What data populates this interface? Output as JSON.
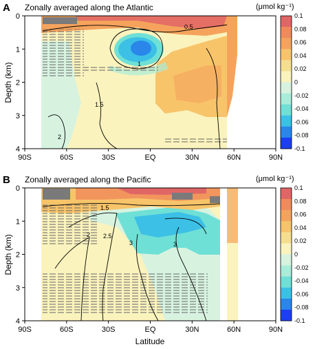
{
  "figure": {
    "xlabel": "Latitude",
    "xticks": [
      "90S",
      "60S",
      "30S",
      "EQ",
      "30N",
      "60N",
      "90N"
    ]
  },
  "chart_data": [
    {
      "panel": "A",
      "type": "heatmap",
      "title": "Zonally averaged along the Atlantic",
      "xlabel": "",
      "ylabel": "Depth (km)",
      "xlim": [
        -90,
        90
      ],
      "ylim": [
        0,
        4
      ],
      "y_inverted": true,
      "yticks": [
        0,
        1,
        2,
        3,
        4
      ],
      "colorbar": {
        "unit": "(μmol kg⁻¹)",
        "ticks": [
          "0.1",
          "0.08",
          "0.06",
          "0.04",
          "0.02",
          "0",
          "-0.02",
          "-0.04",
          "-0.06",
          "-0.08",
          "-0.1"
        ],
        "range": [
          -0.1,
          0.1
        ],
        "colors": [
          "#e06666",
          "#f08a5a",
          "#f5a35c",
          "#f8c46a",
          "#f5df8e",
          "#fbf3bd",
          "#d7f3e0",
          "#a9ecd9",
          "#6fe0d6",
          "#3cc0e6",
          "#2a86e8",
          "#1c3ff0"
        ]
      },
      "contour_labels": [
        "0.5",
        "1",
        "1.5",
        "2"
      ],
      "description_values": {
        "surface_positive_max": 0.1,
        "subsurface_negative_center": {
          "lat": -15,
          "depth_km": 0.8,
          "value": -0.06
        },
        "north_atlantic_positive": {
          "lat_range": [
            10,
            55
          ],
          "depth_range_km": [
            0.5,
            3.2
          ],
          "value": 0.04
        },
        "deep_southern_value": 0.01
      }
    },
    {
      "panel": "B",
      "type": "heatmap",
      "title": "Zonally averaged along the Pacific",
      "xlabel": "Latitude",
      "ylabel": "Depth (km)",
      "xlim": [
        -90,
        90
      ],
      "ylim": [
        0,
        4
      ],
      "y_inverted": true,
      "yticks": [
        0,
        1,
        2,
        3,
        4
      ],
      "colorbar": {
        "unit": "(μmol kg⁻¹)",
        "ticks": [
          "0.1",
          "0.08",
          "0.06",
          "0.04",
          "0.02",
          "0",
          "-0.02",
          "-0.04",
          "-0.06",
          "-0.08",
          "-0.1"
        ],
        "range": [
          -0.1,
          0.1
        ],
        "colors": [
          "#e06666",
          "#f08a5a",
          "#f5a35c",
          "#f8c46a",
          "#f5df8e",
          "#fbf3bd",
          "#d7f3e0",
          "#a9ecd9",
          "#6fe0d6",
          "#3cc0e6",
          "#2a86e8",
          "#1c3ff0"
        ]
      },
      "contour_labels": [
        "1.5",
        "2",
        "2.5",
        "3",
        "3"
      ],
      "description_values": {
        "surface_positive_max": 0.08,
        "tropical_negative_center": {
          "lat": 10,
          "depth_km": 1.1,
          "value": -0.04
        },
        "deep_value": 0.01
      }
    }
  ]
}
